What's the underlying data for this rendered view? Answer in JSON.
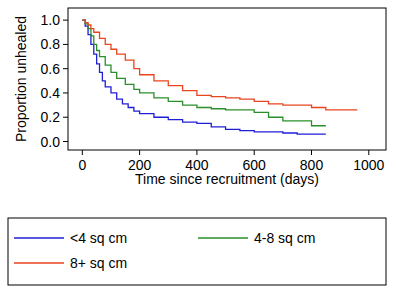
{
  "chart_data": {
    "type": "line",
    "line_style": "step",
    "xlabel": "Time since recruitment (days)",
    "ylabel": "Proportion unhealed",
    "xlim": [
      -50,
      1060
    ],
    "ylim": [
      -0.07,
      1.1
    ],
    "xticks": [
      0,
      200,
      400,
      600,
      800,
      1000
    ],
    "yticks": [
      {
        "value": 0,
        "label": "0.0"
      },
      {
        "value": 0.2,
        "label": "0.2"
      },
      {
        "value": 0.4,
        "label": "0.4"
      },
      {
        "value": 0.6,
        "label": "0.6"
      },
      {
        "value": 0.8,
        "label": "0.8"
      },
      {
        "value": 1,
        "label": "1.0"
      }
    ],
    "grid": false,
    "legend": "bottom",
    "series": [
      {
        "name": "<4 sq cm",
        "color": "#1f1fd6",
        "x": [
          0,
          10,
          20,
          30,
          40,
          50,
          60,
          70,
          80,
          100,
          120,
          140,
          160,
          180,
          200,
          250,
          300,
          350,
          400,
          450,
          500,
          550,
          600,
          700,
          750,
          850
        ],
        "values": [
          1,
          0.95,
          0.88,
          0.8,
          0.72,
          0.64,
          0.57,
          0.5,
          0.45,
          0.4,
          0.35,
          0.31,
          0.28,
          0.25,
          0.23,
          0.2,
          0.18,
          0.16,
          0.15,
          0.12,
          0.1,
          0.09,
          0.08,
          0.07,
          0.06,
          0.06
        ]
      },
      {
        "name": "4-8 sq cm",
        "color": "#2a8f2a",
        "x": [
          0,
          10,
          20,
          30,
          40,
          50,
          60,
          80,
          100,
          120,
          150,
          180,
          200,
          250,
          300,
          350,
          400,
          450,
          500,
          600,
          650,
          700,
          800,
          850
        ],
        "values": [
          1,
          0.97,
          0.93,
          0.87,
          0.8,
          0.75,
          0.7,
          0.63,
          0.57,
          0.52,
          0.47,
          0.43,
          0.4,
          0.36,
          0.33,
          0.3,
          0.28,
          0.27,
          0.26,
          0.24,
          0.2,
          0.17,
          0.13,
          0.13
        ]
      },
      {
        "name": "8+ sq cm",
        "color": "#e8451e",
        "x": [
          0,
          10,
          20,
          30,
          40,
          60,
          80,
          100,
          120,
          150,
          180,
          200,
          250,
          300,
          350,
          400,
          450,
          500,
          550,
          600,
          650,
          700,
          800,
          850,
          960
        ],
        "values": [
          1,
          0.98,
          0.96,
          0.93,
          0.9,
          0.85,
          0.8,
          0.76,
          0.72,
          0.67,
          0.6,
          0.55,
          0.5,
          0.46,
          0.42,
          0.38,
          0.37,
          0.36,
          0.35,
          0.33,
          0.31,
          0.3,
          0.28,
          0.26,
          0.26
        ]
      }
    ]
  }
}
